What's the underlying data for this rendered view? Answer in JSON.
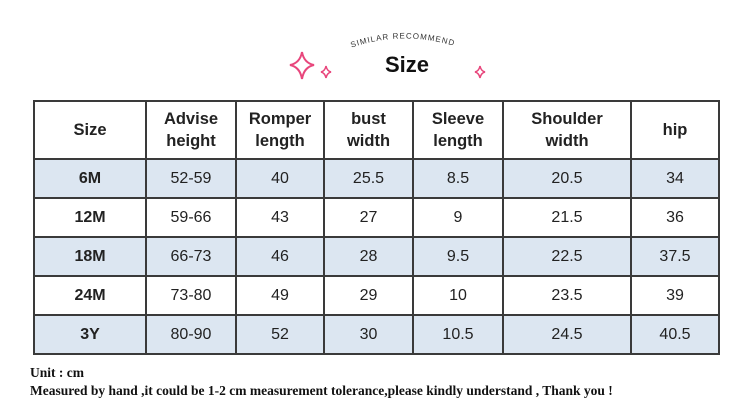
{
  "header": {
    "subtitle": "SIMILAR RECOMMEND",
    "title": "Size"
  },
  "table": {
    "columns": [
      "Size",
      "Advise\nheight",
      "Romper\nlength",
      "bust\nwidth",
      "Sleeve\nlength",
      "Shoulder\nwidth",
      "hip"
    ],
    "rows": [
      [
        "6M",
        "52-59",
        "40",
        "25.5",
        "8.5",
        "20.5",
        "34"
      ],
      [
        "12M",
        "59-66",
        "43",
        "27",
        "9",
        "21.5",
        "36"
      ],
      [
        "18M",
        "66-73",
        "46",
        "28",
        "9.5",
        "22.5",
        "37.5"
      ],
      [
        "24M",
        "73-80",
        "49",
        "29",
        "10",
        "23.5",
        "39"
      ],
      [
        "3Y",
        "80-90",
        "52",
        "30",
        "10.5",
        "24.5",
        "40.5"
      ]
    ]
  },
  "notes": [
    "Unit : cm",
    "Measured by hand ,it could be 1-2 cm measurement tolerance,please kindly understand , Thank you !"
  ]
}
